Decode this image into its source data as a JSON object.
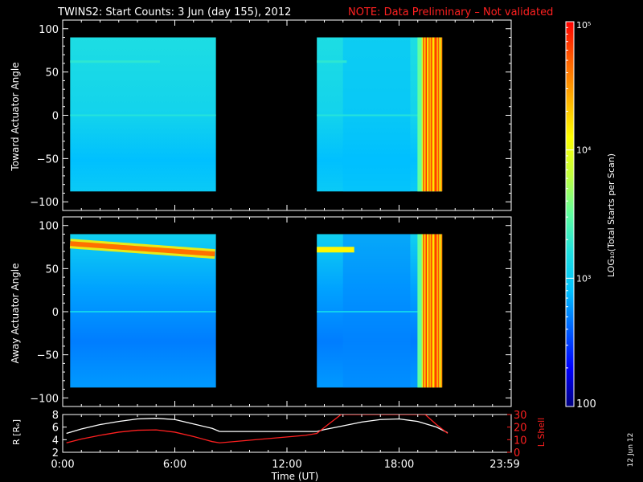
{
  "header": {
    "title": "TWINS2: Start Counts:  3 Jun (day 155), 2012",
    "note": "NOTE: Data Preliminary – Not validated",
    "note_color": "#ff2020"
  },
  "side_date": "12 Jun 12",
  "chart_data": [
    {
      "type": "heatmap",
      "name": "toward",
      "ylabel": "Toward Actuator Angle",
      "ylim": [
        -110,
        110
      ],
      "yticks": [
        "100",
        "50",
        "0",
        "−50",
        "−100"
      ],
      "xlim_hours": [
        0,
        24
      ],
      "data_extent": {
        "angle": [
          -88,
          90
        ]
      },
      "coverage_hours": [
        [
          0.4,
          8.2
        ],
        [
          13.6,
          20.3
        ]
      ],
      "features": {
        "band_angle": 62,
        "band_level": "~10^3",
        "background_level": "~10^2.8",
        "high_count_onset_hour": 19.2,
        "high_count_level": "~10^5"
      }
    },
    {
      "type": "heatmap",
      "name": "away",
      "ylabel": "Away Actuator Angle",
      "ylim": [
        -110,
        110
      ],
      "yticks": [
        "100",
        "50",
        "0",
        "−50",
        "−100"
      ],
      "xlim_hours": [
        0,
        24
      ],
      "data_extent": {
        "angle": [
          -88,
          90
        ]
      },
      "coverage_hours": [
        [
          0.4,
          8.2
        ],
        [
          13.6,
          20.3
        ]
      ],
      "features": {
        "band_angle": 72,
        "band_level": "~10^4.5",
        "background_level": "~10^2.5",
        "high_count_onset_hour": 19.2,
        "high_count_level": "~10^5"
      }
    },
    {
      "type": "line",
      "name": "orbit",
      "xlabel": "Time (UT)",
      "xticks": [
        "0:00",
        "6:00",
        "12:00",
        "18:00",
        "23:59"
      ],
      "ylabel_left": "R [Rₑ]",
      "ylim_left": [
        2,
        8
      ],
      "yticks_left": [
        "8",
        "6",
        "4",
        "2"
      ],
      "ylabel_right": "L Shell",
      "ylim_right": [
        0,
        30
      ],
      "yticks_right": [
        "30",
        "20",
        "10",
        "0"
      ],
      "series": [
        {
          "name": "R",
          "color": "#ffffff",
          "points": [
            [
              0.2,
              5.0
            ],
            [
              1,
              5.7
            ],
            [
              2,
              6.4
            ],
            [
              3,
              6.9
            ],
            [
              4,
              7.3
            ],
            [
              5,
              7.4
            ],
            [
              6,
              7.2
            ],
            [
              7,
              6.5
            ],
            [
              8,
              5.8
            ],
            [
              8.4,
              5.3
            ],
            [
              13.6,
              5.3
            ],
            [
              14,
              5.6
            ],
            [
              15,
              6.2
            ],
            [
              16,
              6.8
            ],
            [
              17,
              7.2
            ],
            [
              18,
              7.3
            ],
            [
              19,
              6.9
            ],
            [
              20,
              6.0
            ],
            [
              20.6,
              5.1
            ]
          ]
        },
        {
          "name": "L Shell",
          "color": "#ff2020",
          "points": [
            [
              0.2,
              7.5
            ],
            [
              1,
              10.5
            ],
            [
              2,
              13.5
            ],
            [
              3,
              16
            ],
            [
              4,
              17.5
            ],
            [
              5,
              17.8
            ],
            [
              6,
              16
            ],
            [
              7,
              12.5
            ],
            [
              8,
              8.5
            ],
            [
              8.4,
              7.5
            ],
            [
              13.0,
              13.5
            ],
            [
              13.6,
              15
            ],
            [
              14.2,
              22
            ],
            [
              14.9,
              30
            ],
            [
              19.4,
              30
            ],
            [
              20.0,
              22
            ],
            [
              20.6,
              15
            ]
          ]
        }
      ]
    }
  ],
  "colorbar": {
    "label": "LOG₁₀(Total Starts per Scan)",
    "range": [
      100,
      100000
    ],
    "ticks": [
      "10⁵",
      "10⁴",
      "10³",
      "100"
    ],
    "colors": [
      "#000080",
      "#0000ff",
      "#0060ff",
      "#00c0ff",
      "#20e0e0",
      "#60ffa0",
      "#c0ff40",
      "#ffff00",
      "#ffb000",
      "#ff6000",
      "#ff0000"
    ]
  }
}
